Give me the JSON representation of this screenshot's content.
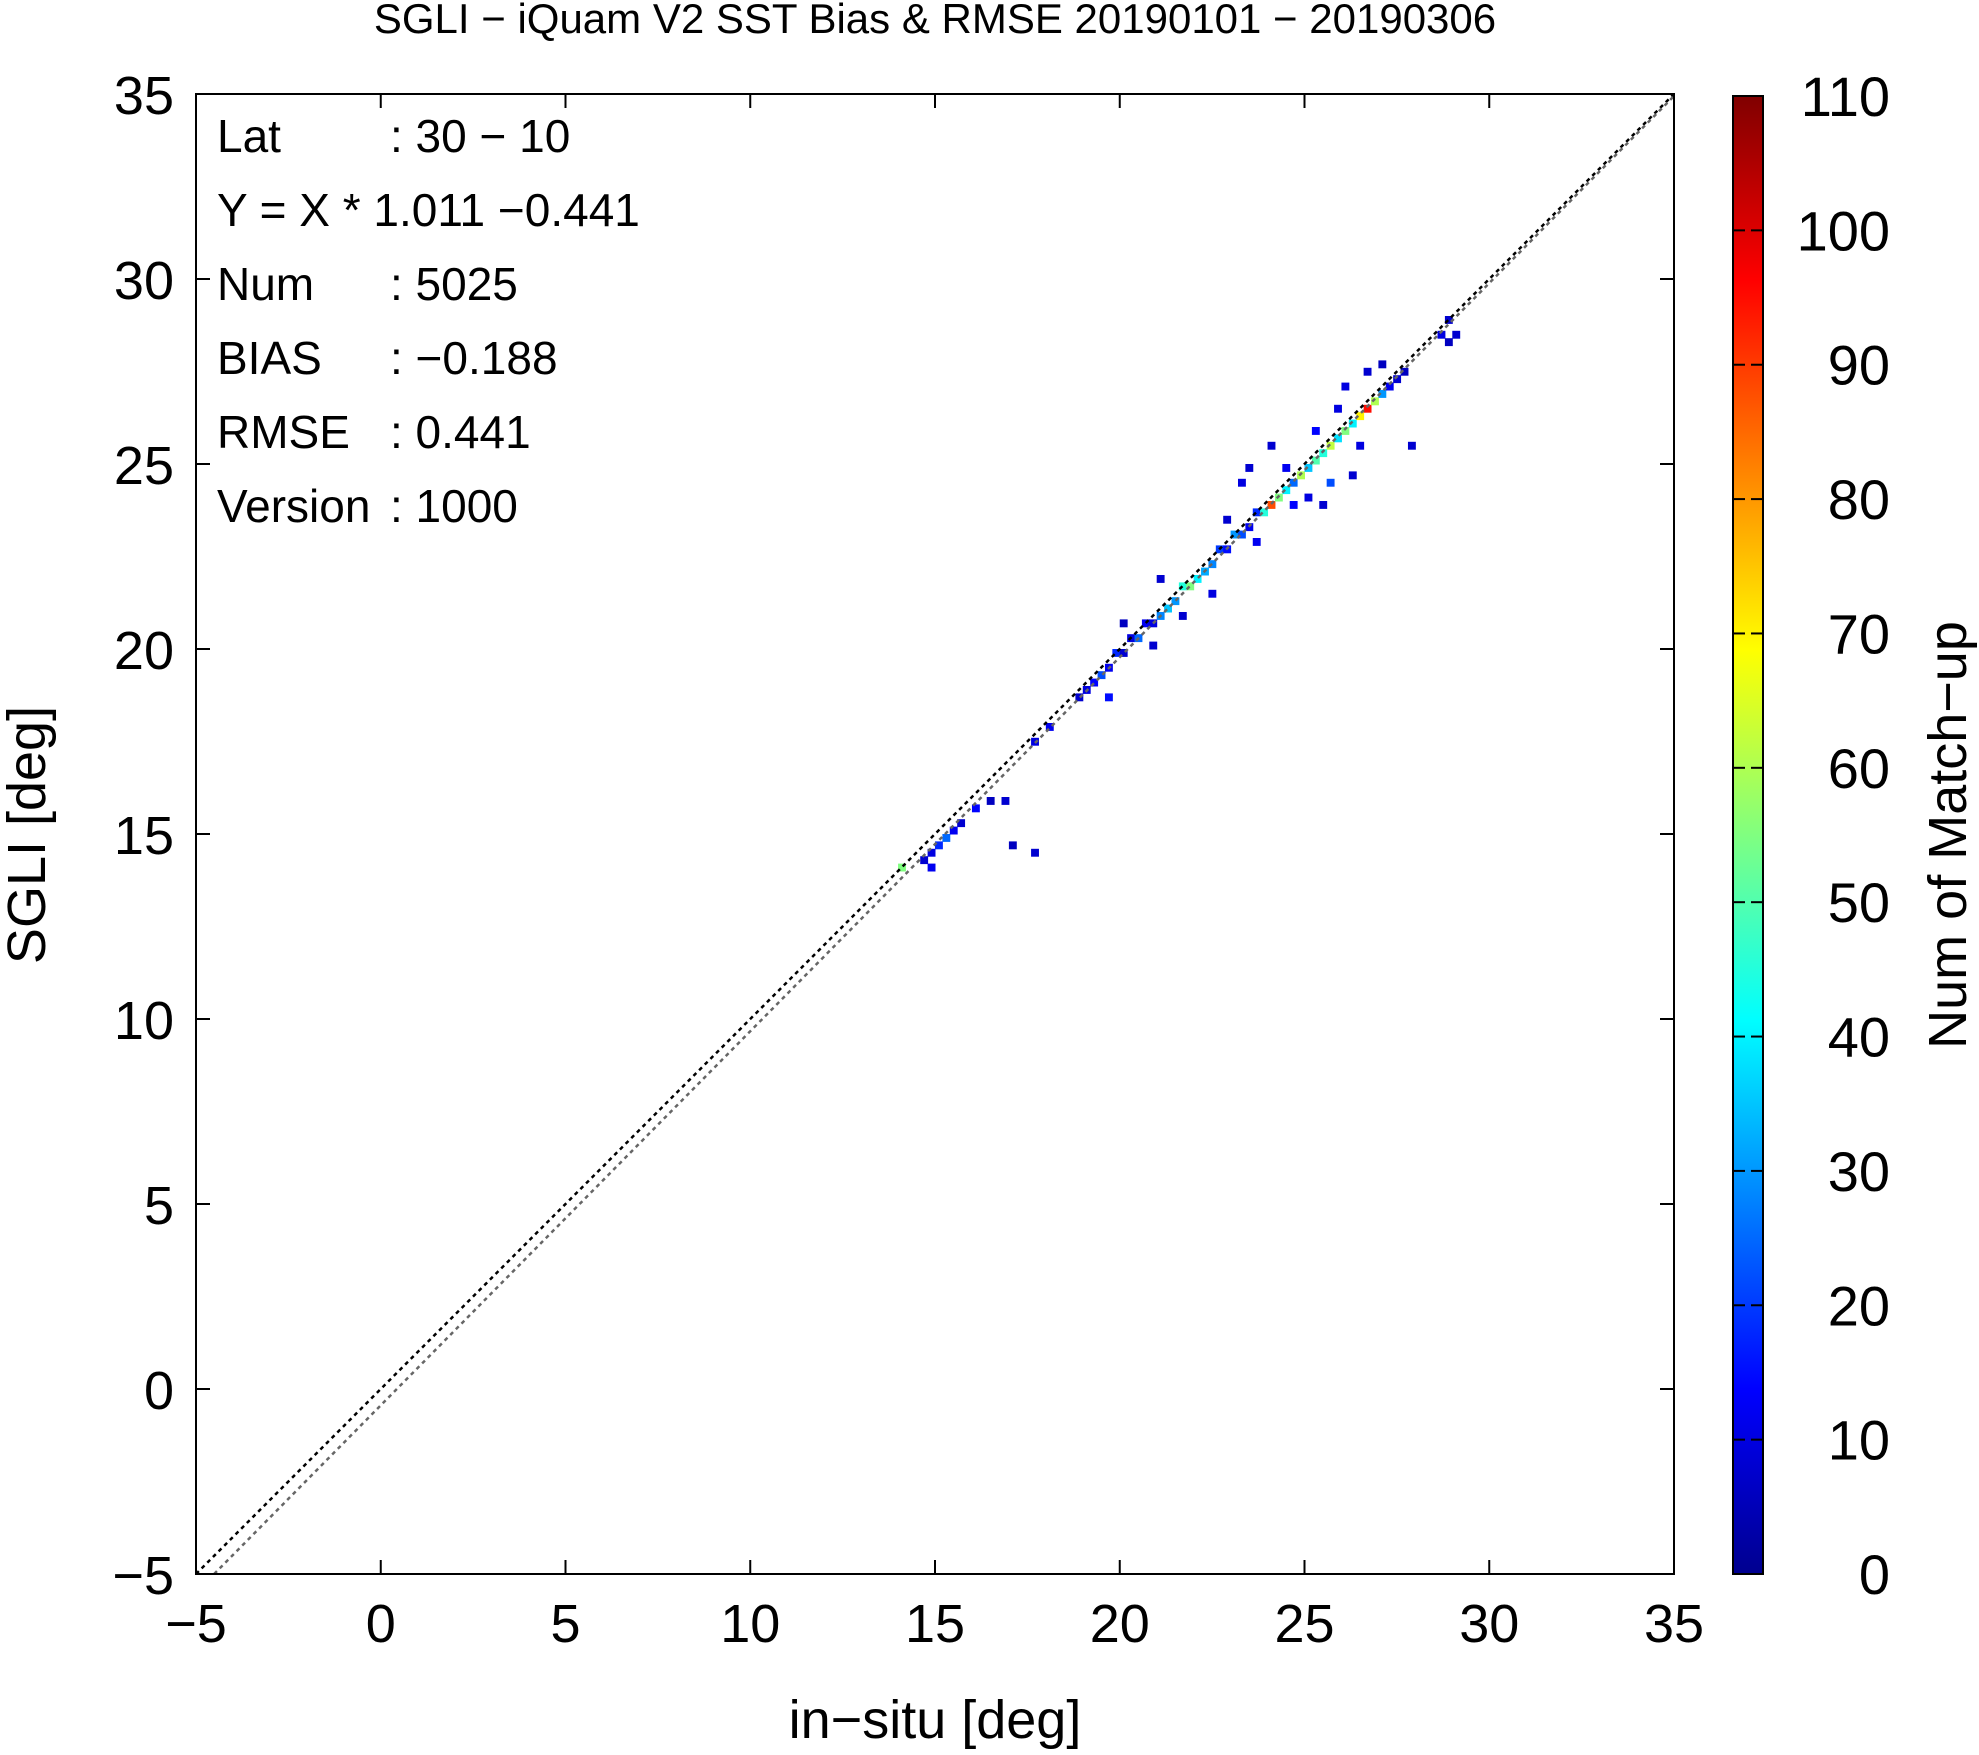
{
  "chart_data": {
    "type": "heatmap",
    "title": "SGLI − iQuam V2 SST Bias & RMSE 20190101 − 20190306",
    "xlabel": "in−situ [deg]",
    "ylabel": "SGLI [deg]",
    "xlim": [
      -5,
      35
    ],
    "ylim": [
      -5,
      35
    ],
    "x_ticks": [
      "−5",
      "0",
      "5",
      "10",
      "15",
      "20",
      "25",
      "30",
      "35"
    ],
    "y_ticks": [
      "−5",
      "0",
      "5",
      "10",
      "15",
      "20",
      "25",
      "30",
      "35"
    ],
    "colorbar": {
      "label": "Num of Match−up",
      "range": [
        0,
        110
      ],
      "ticks": [
        "0",
        "10",
        "20",
        "30",
        "40",
        "50",
        "60",
        "70",
        "80",
        "90",
        "100",
        "110"
      ],
      "colormap": [
        "#00008f",
        "#0000ff",
        "#0080ff",
        "#00ffff",
        "#80ff80",
        "#ffff00",
        "#ff8000",
        "#ff0000",
        "#800000"
      ]
    },
    "lines": [
      {
        "type": "one-to-one",
        "slope": 1.0,
        "intercept": 0.0,
        "style": "dotted",
        "color": "#000000"
      },
      {
        "type": "regression",
        "slope": 1.011,
        "intercept": -0.441,
        "style": "dotted",
        "color": "#666666"
      }
    ],
    "stats": [
      {
        "key": "Lat",
        "value": ": 30 − 10"
      },
      {
        "key": "Y = X * 1.011 −0.441",
        "value": ""
      },
      {
        "key": "Num",
        "value": ": 5025"
      },
      {
        "key": "BIAS",
        "value": ": −0.188"
      },
      {
        "key": "RMSE",
        "value": ": 0.441"
      },
      {
        "key": "Version",
        "value": ": 1000"
      }
    ],
    "grid": false,
    "bin_size": 0.2,
    "cells": [
      {
        "x": 14.0,
        "y": 14.0,
        "count": 55
      },
      {
        "x": 14.6,
        "y": 14.2,
        "count": 8
      },
      {
        "x": 14.8,
        "y": 14.4,
        "count": 10
      },
      {
        "x": 14.8,
        "y": 14.0,
        "count": 12
      },
      {
        "x": 15.0,
        "y": 14.6,
        "count": 18
      },
      {
        "x": 15.2,
        "y": 14.8,
        "count": 25
      },
      {
        "x": 15.4,
        "y": 15.0,
        "count": 12
      },
      {
        "x": 15.6,
        "y": 15.2,
        "count": 8
      },
      {
        "x": 16.0,
        "y": 15.6,
        "count": 14
      },
      {
        "x": 16.4,
        "y": 15.8,
        "count": 6
      },
      {
        "x": 16.8,
        "y": 15.8,
        "count": 8
      },
      {
        "x": 17.0,
        "y": 14.6,
        "count": 6
      },
      {
        "x": 17.6,
        "y": 14.4,
        "count": 8
      },
      {
        "x": 17.6,
        "y": 17.4,
        "count": 10
      },
      {
        "x": 18.0,
        "y": 17.8,
        "count": 12
      },
      {
        "x": 18.8,
        "y": 18.6,
        "count": 8
      },
      {
        "x": 19.0,
        "y": 18.8,
        "count": 10
      },
      {
        "x": 19.2,
        "y": 19.0,
        "count": 14
      },
      {
        "x": 19.4,
        "y": 19.2,
        "count": 22
      },
      {
        "x": 19.6,
        "y": 19.4,
        "count": 12
      },
      {
        "x": 19.8,
        "y": 19.8,
        "count": 18
      },
      {
        "x": 20.0,
        "y": 19.8,
        "count": 8
      },
      {
        "x": 20.2,
        "y": 20.2,
        "count": 10
      },
      {
        "x": 20.4,
        "y": 20.2,
        "count": 25
      },
      {
        "x": 20.6,
        "y": 20.6,
        "count": 12
      },
      {
        "x": 20.8,
        "y": 20.6,
        "count": 10
      },
      {
        "x": 21.0,
        "y": 20.8,
        "count": 28
      },
      {
        "x": 21.2,
        "y": 21.0,
        "count": 35
      },
      {
        "x": 21.4,
        "y": 21.2,
        "count": 30
      },
      {
        "x": 21.6,
        "y": 21.6,
        "count": 45
      },
      {
        "x": 21.8,
        "y": 21.6,
        "count": 55
      },
      {
        "x": 22.0,
        "y": 21.8,
        "count": 40
      },
      {
        "x": 22.2,
        "y": 22.0,
        "count": 32
      },
      {
        "x": 22.4,
        "y": 22.2,
        "count": 28
      },
      {
        "x": 22.6,
        "y": 22.6,
        "count": 20
      },
      {
        "x": 22.8,
        "y": 22.6,
        "count": 15
      },
      {
        "x": 23.0,
        "y": 23.0,
        "count": 30
      },
      {
        "x": 23.2,
        "y": 23.0,
        "count": 22
      },
      {
        "x": 23.4,
        "y": 23.2,
        "count": 12
      },
      {
        "x": 23.6,
        "y": 23.6,
        "count": 18
      },
      {
        "x": 23.8,
        "y": 23.6,
        "count": 45
      },
      {
        "x": 24.0,
        "y": 23.8,
        "count": 88
      },
      {
        "x": 24.2,
        "y": 24.0,
        "count": 55
      },
      {
        "x": 24.4,
        "y": 24.2,
        "count": 40
      },
      {
        "x": 24.6,
        "y": 24.4,
        "count": 25
      },
      {
        "x": 24.8,
        "y": 24.6,
        "count": 60
      },
      {
        "x": 25.0,
        "y": 24.8,
        "count": 35
      },
      {
        "x": 25.2,
        "y": 25.0,
        "count": 50
      },
      {
        "x": 25.4,
        "y": 25.2,
        "count": 45
      },
      {
        "x": 25.6,
        "y": 25.4,
        "count": 62
      },
      {
        "x": 25.8,
        "y": 25.6,
        "count": 38
      },
      {
        "x": 26.0,
        "y": 25.8,
        "count": 55
      },
      {
        "x": 26.2,
        "y": 26.0,
        "count": 40
      },
      {
        "x": 26.4,
        "y": 26.2,
        "count": 70
      },
      {
        "x": 26.6,
        "y": 26.4,
        "count": 95
      },
      {
        "x": 26.8,
        "y": 26.6,
        "count": 60
      },
      {
        "x": 27.0,
        "y": 26.8,
        "count": 30
      },
      {
        "x": 27.2,
        "y": 27.0,
        "count": 12
      },
      {
        "x": 27.4,
        "y": 27.2,
        "count": 8
      },
      {
        "x": 27.6,
        "y": 27.4,
        "count": 6
      },
      {
        "x": 28.6,
        "y": 28.4,
        "count": 10
      },
      {
        "x": 28.8,
        "y": 28.8,
        "count": 8
      },
      {
        "x": 28.8,
        "y": 28.2,
        "count": 6
      },
      {
        "x": 29.0,
        "y": 28.4,
        "count": 8
      },
      {
        "x": 27.8,
        "y": 25.4,
        "count": 8
      },
      {
        "x": 23.2,
        "y": 24.4,
        "count": 10
      },
      {
        "x": 23.4,
        "y": 24.8,
        "count": 8
      },
      {
        "x": 24.6,
        "y": 23.8,
        "count": 14
      },
      {
        "x": 25.0,
        "y": 24.0,
        "count": 10
      },
      {
        "x": 25.4,
        "y": 23.8,
        "count": 8
      },
      {
        "x": 25.6,
        "y": 24.4,
        "count": 22
      },
      {
        "x": 26.2,
        "y": 24.6,
        "count": 8
      },
      {
        "x": 26.0,
        "y": 27.0,
        "count": 10
      },
      {
        "x": 26.6,
        "y": 27.4,
        "count": 8
      },
      {
        "x": 27.0,
        "y": 27.6,
        "count": 6
      },
      {
        "x": 22.4,
        "y": 21.4,
        "count": 10
      },
      {
        "x": 22.8,
        "y": 23.4,
        "count": 8
      },
      {
        "x": 24.0,
        "y": 25.4,
        "count": 8
      },
      {
        "x": 21.0,
        "y": 21.8,
        "count": 8
      },
      {
        "x": 20.0,
        "y": 20.6,
        "count": 6
      },
      {
        "x": 24.4,
        "y": 24.8,
        "count": 12
      },
      {
        "x": 25.2,
        "y": 25.8,
        "count": 14
      },
      {
        "x": 25.8,
        "y": 26.4,
        "count": 10
      },
      {
        "x": 26.4,
        "y": 25.4,
        "count": 10
      },
      {
        "x": 23.6,
        "y": 22.8,
        "count": 12
      },
      {
        "x": 21.6,
        "y": 20.8,
        "count": 8
      },
      {
        "x": 19.6,
        "y": 18.6,
        "count": 15
      },
      {
        "x": 20.8,
        "y": 20.0,
        "count": 8
      }
    ]
  }
}
